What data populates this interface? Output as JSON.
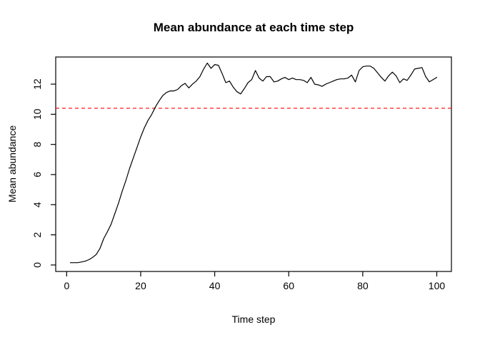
{
  "title": "Mean abundance at each time step",
  "colors": {
    "background": "#ffffff",
    "series_line": "#000000",
    "reference_line": "#ff0000",
    "axis": "#000000"
  },
  "chart_data": {
    "type": "line",
    "title": "Mean abundance at each time step",
    "xlabel": "Time step",
    "ylabel": "Mean abundance",
    "x_start": 1,
    "x_step": 1,
    "x_ticks": [
      0,
      20,
      40,
      60,
      80,
      100
    ],
    "y_ticks": [
      0,
      2,
      4,
      6,
      8,
      10,
      12
    ],
    "xlim": [
      -2.96,
      103.96
    ],
    "ylim": [
      -0.43,
      13.8
    ],
    "grid": false,
    "legend": "none",
    "reference_line": {
      "value": 10.4,
      "color": "#ff0000",
      "style": "dashed"
    },
    "series": [
      {
        "name": "mean abundance",
        "color": "#000000",
        "values": [
          0.15,
          0.15,
          0.15,
          0.2,
          0.25,
          0.35,
          0.5,
          0.7,
          1.1,
          1.75,
          2.2,
          2.7,
          3.4,
          4.1,
          4.9,
          5.6,
          6.4,
          7.1,
          7.8,
          8.5,
          9.1,
          9.6,
          10.0,
          10.5,
          10.9,
          11.25,
          11.45,
          11.55,
          11.55,
          11.65,
          11.9,
          12.05,
          11.75,
          12.0,
          12.2,
          12.5,
          13.0,
          13.4,
          13.05,
          13.3,
          13.25,
          12.7,
          12.1,
          12.2,
          11.8,
          11.5,
          11.35,
          11.7,
          12.1,
          12.3,
          12.9,
          12.4,
          12.2,
          12.5,
          12.5,
          12.15,
          12.2,
          12.35,
          12.45,
          12.3,
          12.4,
          12.3,
          12.3,
          12.25,
          12.1,
          12.45,
          12.0,
          11.95,
          11.85,
          12.0,
          12.1,
          12.2,
          12.3,
          12.35,
          12.35,
          12.4,
          12.6,
          12.15,
          12.9,
          13.15,
          13.2,
          13.2,
          13.05,
          12.75,
          12.45,
          12.2,
          12.55,
          12.8,
          12.55,
          12.1,
          12.35,
          12.25,
          12.6,
          13.0,
          13.05,
          13.1,
          12.5,
          12.15,
          12.3,
          12.45
        ]
      }
    ]
  }
}
